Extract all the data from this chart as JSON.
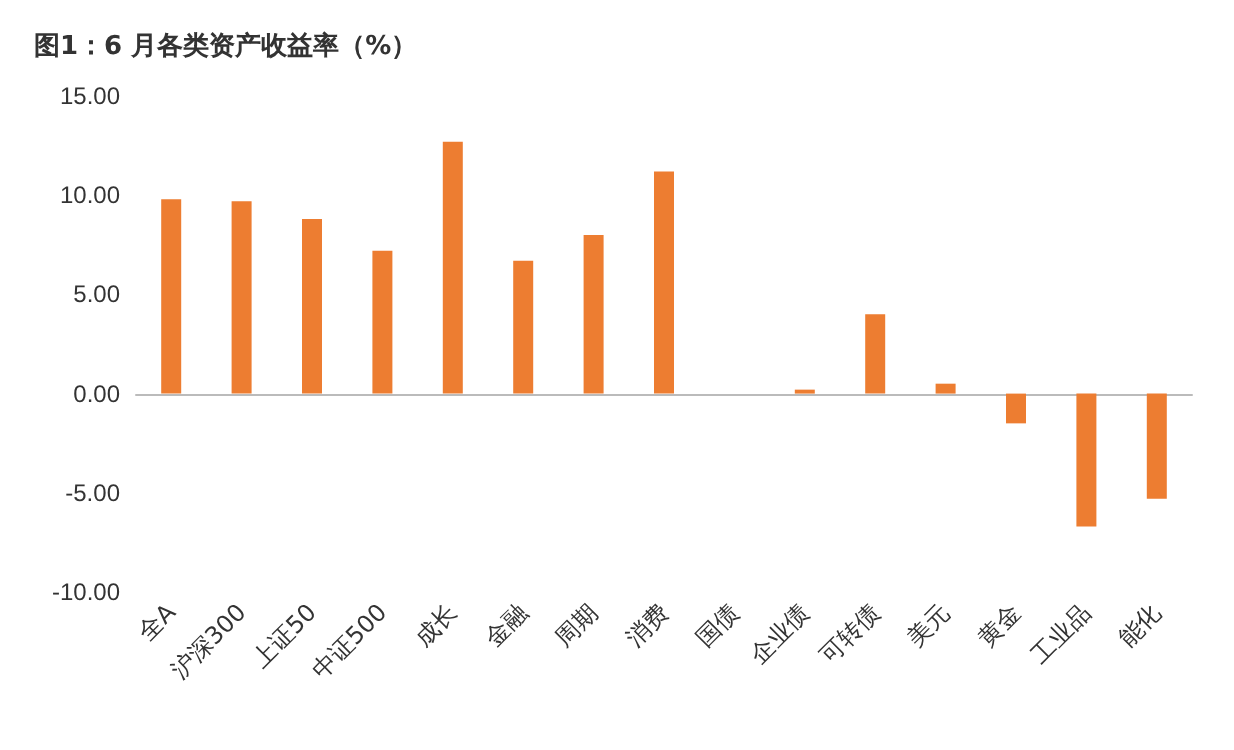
{
  "chart_data": {
    "type": "bar",
    "title": "图1：6 月各类资产收益率（%）",
    "categories": [
      "全A",
      "沪深300",
      "上证50",
      "中证500",
      "成长",
      "金融",
      "周期",
      "消费",
      "国债",
      "企业债",
      "可转债",
      "美元",
      "黄金",
      "工业品",
      "能化"
    ],
    "values": [
      9.8,
      9.7,
      8.8,
      7.2,
      12.7,
      6.7,
      8.0,
      11.2,
      0,
      0.2,
      4.0,
      0.5,
      -1.5,
      -6.7,
      -5.3
    ],
    "color": "#ed7d31",
    "ylim": [
      -10,
      15
    ],
    "yticks": [
      {
        "value": -10,
        "label": "-10.00"
      },
      {
        "value": -5,
        "label": "-5.00"
      },
      {
        "value": 0,
        "label": "0.00"
      },
      {
        "value": 5,
        "label": "5.00"
      },
      {
        "value": 10,
        "label": "10.00"
      },
      {
        "value": 15,
        "label": "15.00"
      }
    ]
  }
}
